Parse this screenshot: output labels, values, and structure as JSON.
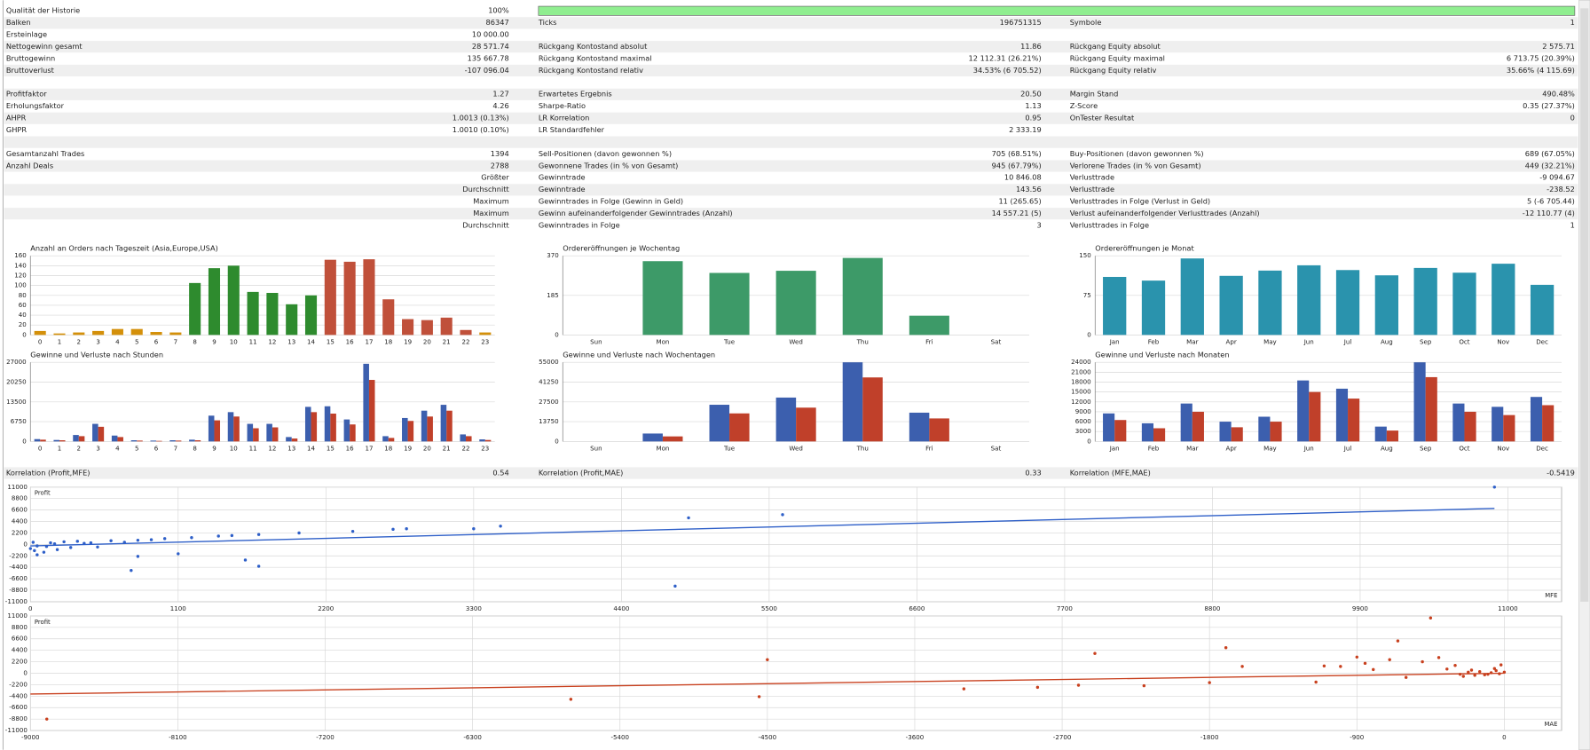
{
  "stats": {
    "rows": [
      [
        "Qualität der Historie",
        "100%",
        null,
        null,
        null,
        null
      ],
      [
        "Balken",
        "86347",
        "Ticks",
        "196751315",
        "Symbole",
        "1"
      ],
      [
        "Ersteinlage",
        "10 000.00",
        null,
        null,
        null,
        null
      ],
      [
        "Nettogewinn gesamt",
        "28 571.74",
        "Rückgang Kontostand absolut",
        "11.86",
        "Rückgang Equity absolut",
        "2 575.71"
      ],
      [
        "Bruttogewinn",
        "135 667.78",
        "Rückgang Kontostand maximal",
        "12 112.31 (26.21%)",
        "Rückgang Equity maximal",
        "6 713.75 (20.39%)"
      ],
      [
        "Bruttoverlust",
        "-107 096.04",
        "Rückgang Kontostand relativ",
        "34.53% (6 705.52)",
        "Rückgang Equity relativ",
        "35.66% (4 115.69)"
      ],
      [],
      [
        "Profitfaktor",
        "1.27",
        "Erwartetes Ergebnis",
        "20.50",
        "Margin Stand",
        "490.48%"
      ],
      [
        "Erholungsfaktor",
        "4.26",
        "Sharpe-Ratio",
        "1.13",
        "Z-Score",
        "0.35 (27.37%)"
      ],
      [
        "AHPR",
        "1.0013 (0.13%)",
        "LR Korrelation",
        "0.95",
        "OnTester Resultat",
        "0"
      ],
      [
        "GHPR",
        "1.0010 (0.10%)",
        "LR Standardfehler",
        "2 333.19",
        null,
        null
      ],
      [],
      [
        "Gesamtanzahl Trades",
        "1394",
        "Sell-Positionen (davon gewonnen %)",
        "705 (68.51%)",
        "Buy-Positionen (davon gewonnen %)",
        "689 (67.05%)"
      ],
      [
        "Anzahl Deals",
        "2788",
        "Gewonnene Trades (in % von Gesamt)",
        "945 (67.79%)",
        "Verlorene Trades (in % von Gesamt)",
        "449 (32.21%)"
      ],
      [
        null,
        "Größter",
        "Gewinntrade",
        "10 846.08",
        "Verlusttrade",
        "-9 094.67"
      ],
      [
        null,
        "Durchschnitt",
        "Gewinntrade",
        "143.56",
        "Verlusttrade",
        "-238.52"
      ],
      [
        null,
        "Maximum",
        "Gewinntrades in Folge (Gewinn in Geld)",
        "11 (265.65)",
        "Verlusttrades in Folge (Verlust in Geld)",
        "5 (-6 705.44)"
      ],
      [
        null,
        "Maximum",
        "Gewinn aufeinanderfolgender Gewinntrades (Anzahl)",
        "14 557.21 (5)",
        "Verlust aufeinanderfolgender Verlusttrades (Anzahl)",
        "-12 110.77 (4)"
      ],
      [
        null,
        "Durchschnitt",
        "Gewinntrades in Folge",
        "3",
        "Verlusttrades in Folge",
        "1"
      ]
    ],
    "correlation_row": [
      "Korrelation (Profit,MFE)",
      "0.54",
      "Korrelation (Profit,MAE)",
      "0.33",
      "Korrelation (MFE,MAE)",
      "-0.5419"
    ]
  },
  "chart_data": [
    {
      "type": "bar",
      "title": "Anzahl an Orders nach Tageszeit (Asia,Europe,USA)",
      "categories": [
        "0",
        "1",
        "2",
        "3",
        "4",
        "5",
        "6",
        "7",
        "8",
        "9",
        "10",
        "11",
        "12",
        "13",
        "14",
        "15",
        "16",
        "17",
        "18",
        "19",
        "20",
        "21",
        "22",
        "23"
      ],
      "values": [
        8,
        3,
        5,
        8,
        12,
        12,
        6,
        5,
        105,
        135,
        140,
        87,
        85,
        62,
        80,
        152,
        148,
        153,
        72,
        32,
        30,
        35,
        10,
        5
      ],
      "colors": [
        "#d4900a",
        "#d4900a",
        "#d4900a",
        "#d4900a",
        "#d4900a",
        "#d4900a",
        "#d4900a",
        "#d4900a",
        "#2e8b2e",
        "#2e8b2e",
        "#2e8b2e",
        "#2e8b2e",
        "#2e8b2e",
        "#2e8b2e",
        "#2e8b2e",
        "#c0503a",
        "#c0503a",
        "#c0503a",
        "#c0503a",
        "#c0503a",
        "#c0503a",
        "#c0503a",
        "#c0503a",
        "#d4900a"
      ],
      "ylim": [
        0,
        160
      ],
      "yticks": [
        0,
        20,
        40,
        60,
        80,
        100,
        120,
        140,
        160
      ],
      "grid": true
    },
    {
      "type": "bar",
      "title": "Ordereröffnungen je Wochentag",
      "categories": [
        "Sun",
        "Mon",
        "Tue",
        "Wed",
        "Thu",
        "Fri",
        "Sat"
      ],
      "values": [
        0,
        345,
        290,
        300,
        360,
        90,
        0
      ],
      "color": "#3d9a68",
      "ylim": [
        0,
        370
      ],
      "yticks": [
        0,
        185,
        370
      ],
      "grid": true
    },
    {
      "type": "bar",
      "title": "Ordereröffnungen je Monat",
      "categories": [
        "Jan",
        "Feb",
        "Mar",
        "Apr",
        "May",
        "Jun",
        "Jul",
        "Aug",
        "Sep",
        "Oct",
        "Nov",
        "Dec"
      ],
      "values": [
        110,
        103,
        145,
        112,
        122,
        132,
        123,
        113,
        127,
        118,
        135,
        95
      ],
      "color": "#2a93ad",
      "ylim": [
        0,
        150
      ],
      "yticks": [
        0,
        75,
        150
      ],
      "grid": true
    },
    {
      "type": "bar",
      "title": "Gewinne und Verluste nach Stunden",
      "categories": [
        "0",
        "1",
        "2",
        "3",
        "4",
        "5",
        "6",
        "7",
        "8",
        "9",
        "10",
        "11",
        "12",
        "13",
        "14",
        "15",
        "16",
        "17",
        "18",
        "19",
        "20",
        "21",
        "22",
        "23"
      ],
      "series": [
        {
          "color": "#3c5fae",
          "values": [
            800,
            500,
            2200,
            6000,
            2000,
            400,
            300,
            400,
            600,
            8800,
            10000,
            6000,
            6000,
            1500,
            11800,
            12000,
            7500,
            26500,
            1800,
            8000,
            10500,
            12500,
            2400,
            700
          ]
        },
        {
          "color": "#c0402a",
          "values": [
            600,
            400,
            1800,
            5000,
            1500,
            300,
            200,
            300,
            400,
            7200,
            8500,
            4500,
            4800,
            1000,
            10000,
            9500,
            5800,
            21000,
            1200,
            7000,
            8500,
            10500,
            1800,
            500
          ]
        }
      ],
      "ylim": [
        0,
        27000
      ],
      "yticks": [
        0,
        6750,
        13500,
        20250,
        27000
      ],
      "grid": true
    },
    {
      "type": "bar",
      "title": "Gewinne und Verluste nach Wochentagen",
      "categories": [
        "Sun",
        "Mon",
        "Tue",
        "Wed",
        "Thu",
        "Fri",
        "Sat"
      ],
      "series": [
        {
          "color": "#3c5fae",
          "values": [
            0,
            5500,
            25500,
            30500,
            55000,
            20000,
            0
          ]
        },
        {
          "color": "#c0402a",
          "values": [
            0,
            3500,
            19500,
            23500,
            44500,
            16000,
            0
          ]
        }
      ],
      "ylim": [
        0,
        55000
      ],
      "yticks": [
        0,
        13750,
        27500,
        41250,
        55000
      ],
      "grid": true
    },
    {
      "type": "bar",
      "title": "Gewinne und Verluste nach Monaten",
      "categories": [
        "Jan",
        "Feb",
        "Mar",
        "Apr",
        "May",
        "Jun",
        "Jul",
        "Aug",
        "Sep",
        "Oct",
        "Nov",
        "Dec"
      ],
      "series": [
        {
          "color": "#3c5fae",
          "values": [
            8500,
            5500,
            11500,
            6000,
            7500,
            18500,
            16000,
            4500,
            24000,
            11500,
            10500,
            13500
          ]
        },
        {
          "color": "#c0402a",
          "values": [
            6500,
            4000,
            9000,
            4300,
            6000,
            15000,
            13000,
            3300,
            19500,
            9000,
            8000,
            11000
          ]
        }
      ],
      "ylim": [
        0,
        24000
      ],
      "yticks": [
        0,
        3000,
        6000,
        9000,
        12000,
        15000,
        18000,
        21000,
        24000
      ],
      "grid": true
    },
    {
      "type": "scatter",
      "y_label": "Profit",
      "x_label": "MFE",
      "color": "#2e5fc8",
      "x": [
        10900,
        5600,
        4900,
        4800,
        3500,
        3300,
        2800,
        2700,
        2400,
        2000,
        1700,
        1500,
        1400,
        1200,
        1000,
        800,
        1600,
        1700,
        1100,
        800,
        750,
        500,
        400,
        300,
        200,
        100,
        50,
        30,
        0,
        20,
        150,
        250,
        350,
        450,
        600,
        700,
        900,
        50,
        120,
        180
      ],
      "y": [
        11000,
        5700,
        5100,
        -8000,
        3500,
        3000,
        3000,
        2900,
        2500,
        2200,
        1900,
        1700,
        1600,
        1300,
        1100,
        800,
        -3000,
        -4200,
        -1800,
        -2300,
        -5000,
        -500,
        200,
        -600,
        -1000,
        -1500,
        -2000,
        -1200,
        -800,
        400,
        300,
        500,
        600,
        300,
        700,
        400,
        900,
        -300,
        -400,
        100
      ],
      "trend": {
        "x": [
          0,
          10900
        ],
        "y": [
          -300,
          6900
        ]
      },
      "xlim": [
        0,
        11400
      ],
      "xticks": [
        0,
        1100,
        2200,
        3300,
        4400,
        5500,
        6600,
        7700,
        8800,
        9900,
        11000
      ],
      "ylim": [
        -11000,
        11000
      ],
      "yticks": [
        -11000,
        -8800,
        -6600,
        -4400,
        -2200,
        0,
        2200,
        4400,
        6600,
        8800,
        11000
      ],
      "grid": true
    },
    {
      "type": "scatter",
      "y_label": "Profit",
      "x_label": "MAE",
      "color": "#c8401e",
      "x": [
        -8900,
        -4500,
        -4550,
        -5700,
        -3300,
        -2850,
        -2600,
        -2200,
        -2500,
        -1700,
        -1800,
        -1600,
        -1150,
        -1100,
        -1000,
        -900,
        -850,
        -700,
        -650,
        -600,
        -500,
        -450,
        -400,
        -350,
        -300,
        -250,
        -200,
        -150,
        -100,
        -50,
        -20,
        0,
        -80,
        -120,
        -30,
        -60,
        -180,
        -220,
        -270,
        -800
      ],
      "y": [
        -8800,
        2600,
        -4500,
        -5000,
        -3000,
        -2700,
        -2300,
        -2400,
        3800,
        4900,
        -1800,
        1300,
        -1700,
        1400,
        1300,
        3100,
        1900,
        2600,
        6200,
        -800,
        2200,
        10600,
        3000,
        800,
        1500,
        -600,
        600,
        300,
        -200,
        500,
        1600,
        200,
        100,
        -300,
        -100,
        900,
        -400,
        200,
        -200,
        700
      ],
      "trend": {
        "x": [
          -9000,
          0
        ],
        "y": [
          -4000,
          0
        ]
      },
      "xlim": [
        -9000,
        350
      ],
      "xticks": [
        -9000,
        -8100,
        -7200,
        -6300,
        -5400,
        -4500,
        -3600,
        -2700,
        -1800,
        -900,
        0
      ],
      "ylim": [
        -11000,
        11000
      ],
      "yticks": [
        -11000,
        -8800,
        -6600,
        -4400,
        -2200,
        0,
        2200,
        4400,
        6600,
        8800,
        11000
      ],
      "grid": true
    }
  ]
}
